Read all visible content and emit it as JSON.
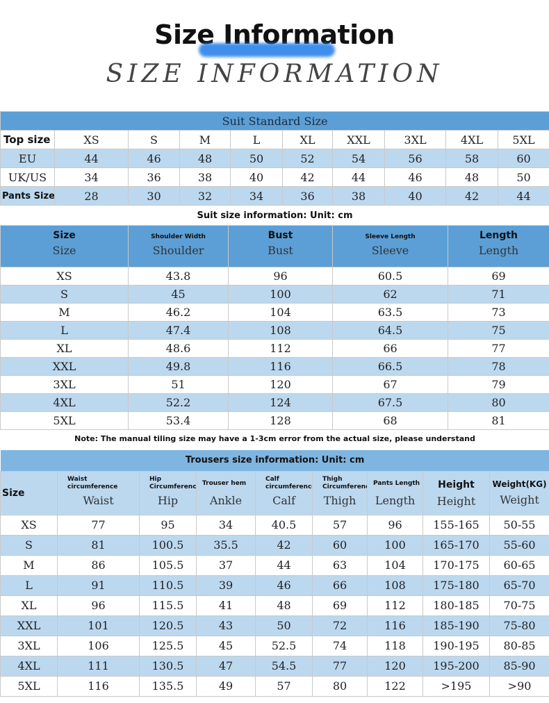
{
  "header": {
    "title": "Size Information",
    "subtitle": "SIZE INFORMATION"
  },
  "standard": {
    "caption": "Suit Standard Size",
    "rows": [
      {
        "label": "Top size",
        "values": [
          "XS",
          "S",
          "M",
          "L",
          "XL",
          "XXL",
          "3XL",
          "4XL",
          "5XL"
        ]
      },
      {
        "label": "EU",
        "values": [
          "44",
          "46",
          "48",
          "50",
          "52",
          "54",
          "56",
          "58",
          "60"
        ]
      },
      {
        "label": "UK/US",
        "values": [
          "34",
          "36",
          "38",
          "40",
          "42",
          "44",
          "46",
          "48",
          "50"
        ]
      },
      {
        "label": "Pants Size",
        "values": [
          "28",
          "30",
          "32",
          "34",
          "36",
          "38",
          "40",
          "42",
          "44"
        ]
      }
    ]
  },
  "suit": {
    "caption": "Suit size information: Unit: cm",
    "headers": [
      {
        "top": "Size",
        "sub": "Size"
      },
      {
        "top": "Shoulder Width",
        "sub": "Shoulder"
      },
      {
        "top": "Bust",
        "sub": "Bust"
      },
      {
        "top": "Sleeve Length",
        "sub": "Sleeve"
      },
      {
        "top": "Length",
        "sub": "Length"
      }
    ],
    "rows": [
      [
        "XS",
        "43.8",
        "96",
        "60.5",
        "69"
      ],
      [
        "S",
        "45",
        "100",
        "62",
        "71"
      ],
      [
        "M",
        "46.2",
        "104",
        "63.5",
        "73"
      ],
      [
        "L",
        "47.4",
        "108",
        "64.5",
        "75"
      ],
      [
        "XL",
        "48.6",
        "112",
        "66",
        "77"
      ],
      [
        "XXL",
        "49.8",
        "116",
        "66.5",
        "78"
      ],
      [
        "3XL",
        "51",
        "120",
        "67",
        "79"
      ],
      [
        "4XL",
        "52.2",
        "124",
        "67.5",
        "80"
      ],
      [
        "5XL",
        "53.4",
        "128",
        "68",
        "81"
      ]
    ],
    "note": "Note: The manual tiling size may have a 1-3cm error from the actual size, please understand"
  },
  "trousers": {
    "caption": "Trousers size information: Unit: cm",
    "headers": [
      {
        "top": "Size",
        "sub": ""
      },
      {
        "top": "Waist circumference",
        "sub": "Waist"
      },
      {
        "top": "Hip Circumference",
        "sub": "Hip"
      },
      {
        "top": "Trouser hem",
        "sub": "Ankle"
      },
      {
        "top": "Calf circumference",
        "sub": "Calf"
      },
      {
        "top": "Thigh Circumference",
        "sub": "Thigh"
      },
      {
        "top": "Pants Length",
        "sub": "Length"
      },
      {
        "top": "Height",
        "sub": "Height"
      },
      {
        "top": "Weight(KG)",
        "sub": "Weight"
      }
    ],
    "rows": [
      [
        "XS",
        "77",
        "95",
        "34",
        "40.5",
        "57",
        "96",
        "155-165",
        "50-55"
      ],
      [
        "S",
        "81",
        "100.5",
        "35.5",
        "42",
        "60",
        "100",
        "165-170",
        "55-60"
      ],
      [
        "M",
        "86",
        "105.5",
        "37",
        "44",
        "63",
        "104",
        "170-175",
        "60-65"
      ],
      [
        "L",
        "91",
        "110.5",
        "39",
        "46",
        "66",
        "108",
        "175-180",
        "65-70"
      ],
      [
        "XL",
        "96",
        "115.5",
        "41",
        "48",
        "69",
        "112",
        "180-185",
        "70-75"
      ],
      [
        "XXL",
        "101",
        "120.5",
        "43",
        "50",
        "72",
        "116",
        "185-190",
        "75-80"
      ],
      [
        "3XL",
        "106",
        "125.5",
        "45",
        "52.5",
        "74",
        "118",
        "190-195",
        "80-85"
      ],
      [
        "4XL",
        "111",
        "130.5",
        "47",
        "54.5",
        "77",
        "120",
        "195-200",
        "85-90"
      ],
      [
        "5XL",
        "116",
        "135.5",
        "49",
        "57",
        "80",
        "122",
        ">195",
        ">90"
      ]
    ]
  },
  "colors": {
    "header_blue": "#5b9fd6",
    "band_blue": "#bcd8ef"
  }
}
